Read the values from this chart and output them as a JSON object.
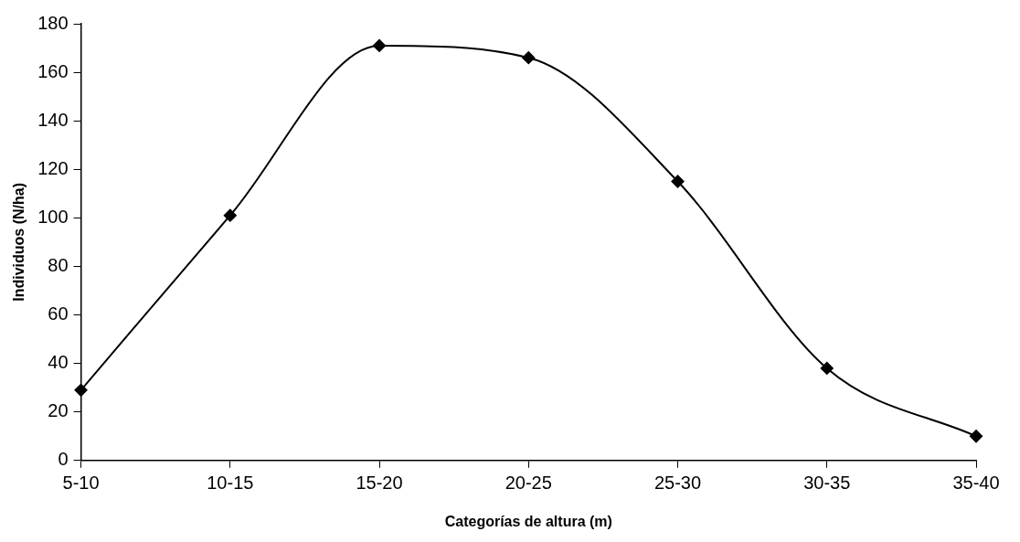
{
  "chart_data": {
    "type": "line",
    "xlabel": "Categorías de altura (m)",
    "ylabel": "Individuos (N/ha)",
    "categories": [
      "5-10",
      "10-15",
      "15-20",
      "20-25",
      "25-30",
      "30-35",
      "35-40"
    ],
    "series": [
      {
        "color": "#000000",
        "values": [
          29,
          101,
          171,
          166,
          115,
          38,
          10
        ]
      }
    ],
    "ylim": [
      0,
      180
    ],
    "yticks": [
      0,
      20,
      40,
      60,
      80,
      100,
      120,
      140,
      160,
      180
    ],
    "grid": false,
    "legend": false,
    "marker": "diamond",
    "line_style": "solid"
  }
}
